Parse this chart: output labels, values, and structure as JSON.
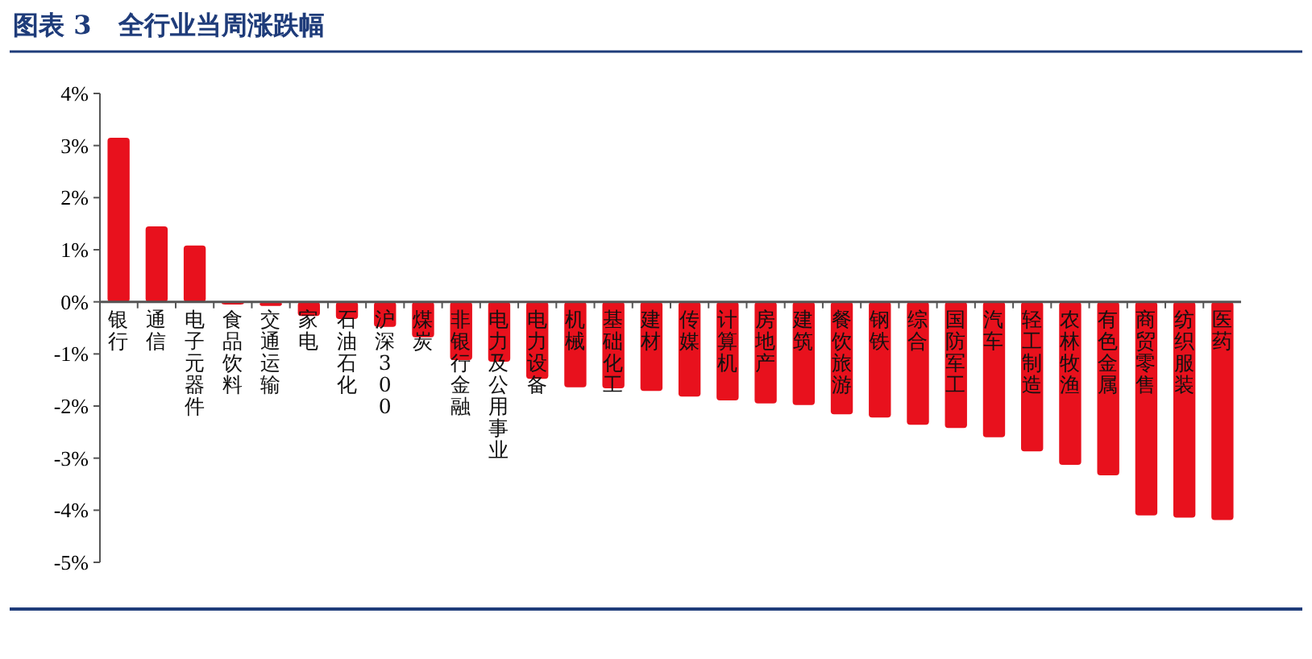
{
  "chart_data": {
    "type": "bar",
    "title": "图表 3   全行业当周涨跌幅",
    "categories": [
      "银行",
      "通信",
      "电子元器件",
      "食品饮料",
      "交通运输",
      "家电",
      "石油石化",
      "沪深300",
      "煤炭",
      "非银行金融",
      "电力及公用事业",
      "电力设备",
      "机械",
      "基础化工",
      "建材",
      "传媒",
      "计算机",
      "房地产",
      "建筑",
      "餐饮旅游",
      "钢铁",
      "综合",
      "国防军工",
      "汽车",
      "轻工制造",
      "农林牧渔",
      "有色金属",
      "商贸零售",
      "纺织服装",
      "医药"
    ],
    "values": [
      3.15,
      1.45,
      1.08,
      -0.05,
      -0.08,
      -0.27,
      -0.33,
      -0.48,
      -0.68,
      -1.12,
      -1.15,
      -1.48,
      -1.64,
      -1.66,
      -1.71,
      -1.82,
      -1.89,
      -1.95,
      -1.98,
      -2.16,
      -2.22,
      -2.36,
      -2.42,
      -2.6,
      -2.87,
      -3.13,
      -3.33,
      -4.1,
      -4.14,
      -4.19
    ],
    "color": "#e8111d",
    "ylim": [
      -5,
      4
    ],
    "yticks": [
      {
        "value": 4,
        "label": "4%"
      },
      {
        "value": 3,
        "label": "3%"
      },
      {
        "value": 2,
        "label": "2%"
      },
      {
        "value": 1,
        "label": "1%"
      },
      {
        "value": 0,
        "label": "0%"
      },
      {
        "value": -1,
        "label": "-1%"
      },
      {
        "value": -2,
        "label": "-2%"
      },
      {
        "value": -3,
        "label": "-3%"
      },
      {
        "value": -4,
        "label": "-4%"
      },
      {
        "value": -5,
        "label": "-5%"
      }
    ],
    "grid": false
  }
}
